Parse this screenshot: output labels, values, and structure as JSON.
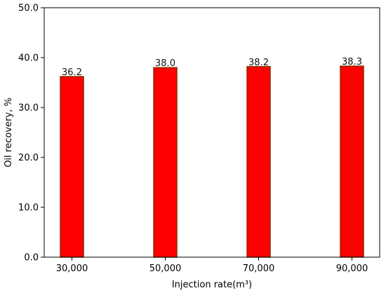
{
  "chart_data": {
    "type": "bar",
    "categories": [
      "30,000",
      "50,000",
      "70,000",
      "90,000"
    ],
    "values": [
      36.2,
      38.0,
      38.2,
      38.3
    ],
    "data_labels": [
      "36.2",
      "38.0",
      "38.2",
      "38.3"
    ],
    "xlabel": "Injection rate(m³)",
    "ylabel": "Oil recovery, %",
    "ylim": [
      0,
      50
    ],
    "yticks": [
      0,
      10,
      20,
      30,
      40,
      50
    ],
    "ytick_labels": [
      "0.0",
      "10.0",
      "20.0",
      "30.0",
      "40.0",
      "50.0"
    ],
    "grid": false,
    "bar_color": "#ff0000",
    "bar_edge_color": "#8b2e00"
  }
}
